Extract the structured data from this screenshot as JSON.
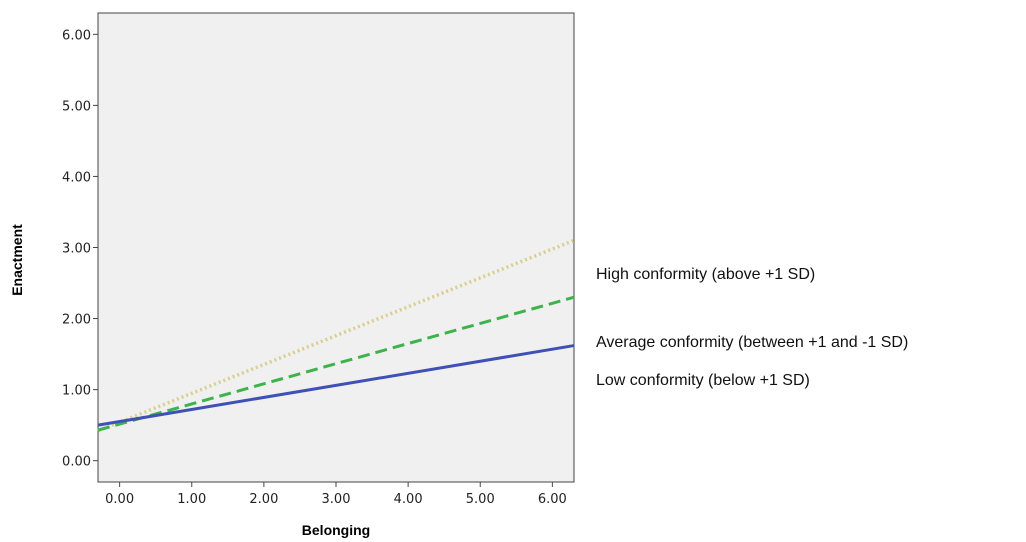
{
  "chart_data": {
    "type": "line",
    "xlabel": "Belonging",
    "ylabel": "Enactment",
    "xlim": [
      -0.3,
      6.3
    ],
    "ylim": [
      -0.3,
      6.3
    ],
    "xticks": [
      "0.00",
      "1.00",
      "2.00",
      "3.00",
      "4.00",
      "5.00",
      "6.00"
    ],
    "yticks": [
      "0.00",
      "1.00",
      "2.00",
      "3.00",
      "4.00",
      "5.00",
      "6.00"
    ],
    "grid": false,
    "legend_position": "right",
    "series": [
      {
        "name": "High conformity (above +1 SD)",
        "x": [
          -0.3,
          6.3
        ],
        "y": [
          0.42,
          3.1
        ],
        "color": "#d8cf8a",
        "style": "dotted"
      },
      {
        "name": "Average conformity (between +1 and -1 SD)",
        "x": [
          -0.3,
          6.3
        ],
        "y": [
          0.43,
          2.3
        ],
        "color": "#3cb44b",
        "style": "dashed"
      },
      {
        "name": "Low conformity (below +1 SD)",
        "x": [
          -0.3,
          6.3
        ],
        "y": [
          0.5,
          1.62
        ],
        "color": "#3f51b5",
        "style": "solid"
      }
    ],
    "plot_background": "#f0f0f0"
  }
}
